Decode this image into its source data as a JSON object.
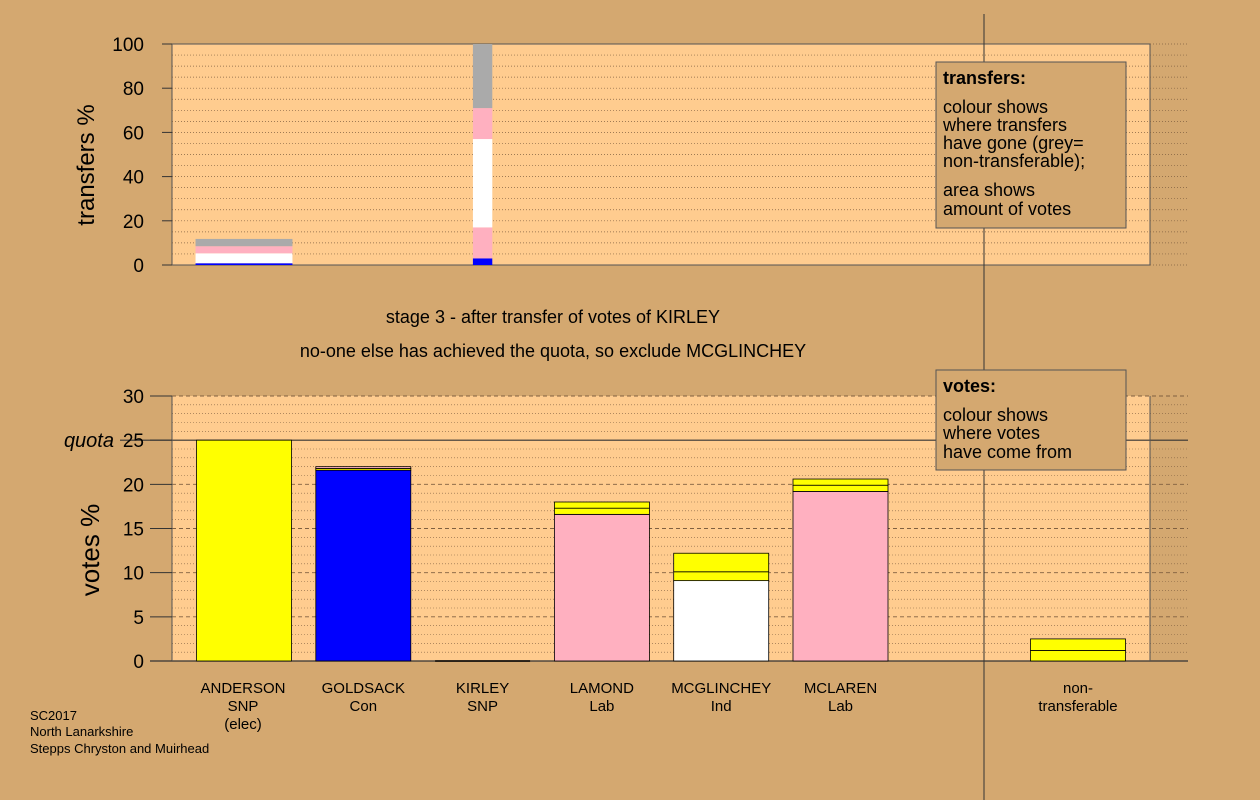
{
  "colors": {
    "background": "#d4a870",
    "plot_area": "#ffcc8f",
    "legend_box": "#d4a870",
    "SNP": "#ffff00",
    "Con": "#0000ff",
    "Lab": "#ffb0c0",
    "Ind": "#ffffff",
    "non_transferable": "#aaaaaa"
  },
  "stage": {
    "line1": "stage 3 - after transfer of votes of KIRLEY",
    "line2": "no-one else has achieved the quota, so exclude MCGLINCHEY"
  },
  "footer": {
    "line1": "SC2017",
    "line2": "North Lanarkshire",
    "line3": "Stepps Chryston and Muirhead"
  },
  "legends": {
    "transfers": {
      "title": "transfers:",
      "lines1": [
        "colour shows",
        "where transfers",
        "have gone (grey=",
        "non-transferable);"
      ],
      "lines2": [
        "area shows",
        "amount of votes"
      ]
    },
    "votes": {
      "title": "votes:",
      "lines": [
        "colour shows",
        "where votes",
        "have come from"
      ]
    }
  },
  "chart_data": [
    {
      "type": "bar",
      "name": "transfers",
      "ylabel": "transfers %",
      "ylim": [
        0,
        100
      ],
      "yticks": [
        0,
        20,
        40,
        60,
        80,
        100
      ],
      "bars": [
        {
          "position": "ANDERSON",
          "width_fraction": 0.85,
          "segments": [
            {
              "party": "Con",
              "value": 0.8
            },
            {
              "party": "Ind",
              "value": 4.5
            },
            {
              "party": "Lab",
              "value": 3.2
            },
            {
              "party": "non_transferable",
              "value": 3.3
            }
          ]
        },
        {
          "position": "KIRLEY",
          "width_fraction": 0.17,
          "segments": [
            {
              "party": "Con",
              "value": 3
            },
            {
              "party": "Lab",
              "value": 14
            },
            {
              "party": "Ind",
              "value": 40
            },
            {
              "party": "Lab",
              "value": 14
            },
            {
              "party": "non_transferable",
              "value": 29
            }
          ]
        }
      ]
    },
    {
      "type": "bar",
      "name": "votes",
      "ylabel": "votes %",
      "ylim": [
        0,
        30
      ],
      "yticks": [
        0,
        5,
        10,
        15,
        20,
        25,
        30
      ],
      "quota": 25,
      "quota_label": "quota",
      "categories": [
        {
          "name": "ANDERSON",
          "party": "SNP",
          "note": "(elec)"
        },
        {
          "name": "GOLDSACK",
          "party": "Con",
          "note": ""
        },
        {
          "name": "KIRLEY",
          "party": "SNP",
          "note": ""
        },
        {
          "name": "LAMOND",
          "party": "Lab",
          "note": ""
        },
        {
          "name": "MCGLINCHEY",
          "party": "Ind",
          "note": ""
        },
        {
          "name": "MCLAREN",
          "party": "Lab",
          "note": ""
        },
        {
          "name": "non-",
          "party": "transferable",
          "note": ""
        }
      ],
      "bars": [
        [
          {
            "party": "SNP",
            "value": 25
          }
        ],
        [
          {
            "party": "Con",
            "value": 21.6
          },
          {
            "party": "SNP",
            "value": 0.2
          },
          {
            "party": "Lab",
            "value": 0.2
          }
        ],
        [],
        [
          {
            "party": "Lab",
            "value": 16.6
          },
          {
            "party": "SNP",
            "value": 0.7
          },
          {
            "party": "SNP",
            "value": 0.7
          }
        ],
        [
          {
            "party": "Ind",
            "value": 9.1
          },
          {
            "party": "SNP",
            "value": 1.0
          },
          {
            "party": "SNP",
            "value": 2.1
          }
        ],
        [
          {
            "party": "Lab",
            "value": 19.2
          },
          {
            "party": "SNP",
            "value": 0.7
          },
          {
            "party": "SNP",
            "value": 0.7
          }
        ],
        [
          {
            "party": "SNP",
            "value": 1.2
          },
          {
            "party": "SNP",
            "value": 1.3
          }
        ]
      ]
    }
  ]
}
